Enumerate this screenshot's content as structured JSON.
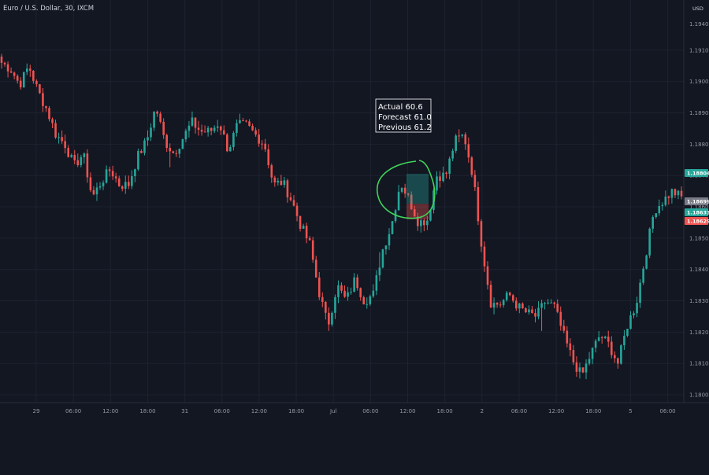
{
  "header": {
    "symbol_title": "Euro / U.S. Dollar, 30, IXCM",
    "currency": "USD"
  },
  "colors": {
    "background": "#131722",
    "grid": "#1e2230",
    "up": "#26a69a",
    "down": "#ef5350",
    "annotation_circle": "#3fd55a",
    "axis_text": "#9598a1"
  },
  "callout": {
    "lines": [
      "Actual 60.6",
      "Forecast 61.0",
      "Previous 61.2"
    ]
  },
  "chart_data": {
    "type": "candlestick",
    "title": "Euro / U.S. Dollar, 30, IXCM",
    "ylim": [
      1.17985,
      1.19185
    ],
    "y_ticks": [
      "1.19100",
      "1.19000",
      "1.18900",
      "1.18800",
      "1.18700",
      "1.18600",
      "1.18500",
      "1.18400",
      "1.18300",
      "1.18200",
      "1.18100",
      "1.18000"
    ],
    "top_partial_tick": "1.19400",
    "x_ticks": [
      "29",
      "06:00",
      "12:00",
      "18:00",
      "31",
      "06:00",
      "12:00",
      "18:00",
      "Jul",
      "06:00",
      "12:00",
      "18:00",
      "2",
      "06:00",
      "12:00",
      "18:00",
      "5",
      "06:00"
    ],
    "price_badges": [
      {
        "label": "1.18804",
        "color": "#26a69a"
      },
      {
        "label": "1.18699",
        "color": "#787b86"
      },
      {
        "label": "1.18633",
        "color": "#26a69a"
      },
      {
        "label": "1.18629",
        "color": "#ef5350"
      }
    ],
    "close_path": [
      1.1906,
      1.1904,
      1.1899,
      1.1905,
      1.1897,
      1.1891,
      1.1883,
      1.188,
      1.1873,
      1.1877,
      1.1863,
      1.1868,
      1.1872,
      1.1867,
      1.1867,
      1.1876,
      1.1881,
      1.1892,
      1.1881,
      1.1877,
      1.1882,
      1.1887,
      1.1884,
      1.1884,
      1.1887,
      1.1878,
      1.1886,
      1.1886,
      1.1883,
      1.188,
      1.1867,
      1.1868,
      1.1862,
      1.1854,
      1.1848,
      1.1833,
      1.1822,
      1.1835,
      1.183,
      1.1837,
      1.183,
      1.1832,
      1.1846,
      1.1854,
      1.1868,
      1.1862,
      1.1855,
      1.1856,
      1.187,
      1.187,
      1.1881,
      1.1883,
      1.187,
      1.1847,
      1.1829,
      1.1829,
      1.1832,
      1.1828,
      1.1826,
      1.1825,
      1.183,
      1.1828,
      1.1819,
      1.1811,
      1.1806,
      1.1813,
      1.1819,
      1.1816,
      1.181,
      1.1822,
      1.1829,
      1.1844,
      1.1859,
      1.1862,
      1.1865,
      1.1863
    ],
    "annotation": "hand-drawn green circle around spike near Jul 12:00"
  }
}
